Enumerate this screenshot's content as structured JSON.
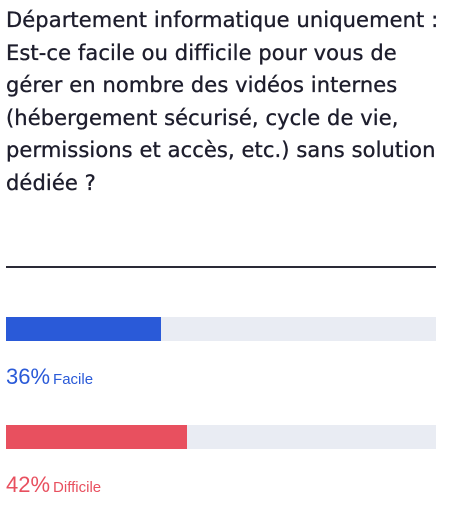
{
  "question": "Département informatique uniquement : Est-ce facile ou difficile pour vous de gérer en nombre des vidéos internes (hébergement sécurisé, cycle de vie, permissions et accès, etc.) sans solution dédiée ?",
  "chart_data": {
    "type": "bar",
    "orientation": "horizontal",
    "title": "Département informatique uniquement : Est-ce facile ou difficile pour vous de gérer en nombre des vidéos internes (hébergement sécurisé, cycle de vie, permissions et accès, etc.) sans solution dédiée ?",
    "categories": [
      "Facile",
      "Difficile"
    ],
    "values": [
      36,
      42
    ],
    "value_labels": [
      "36%",
      "42%"
    ],
    "unit": "%",
    "xlim": [
      0,
      100
    ],
    "colors": [
      "#2a5ad8",
      "#e8505f"
    ],
    "track_color": "#e9ecf3"
  }
}
